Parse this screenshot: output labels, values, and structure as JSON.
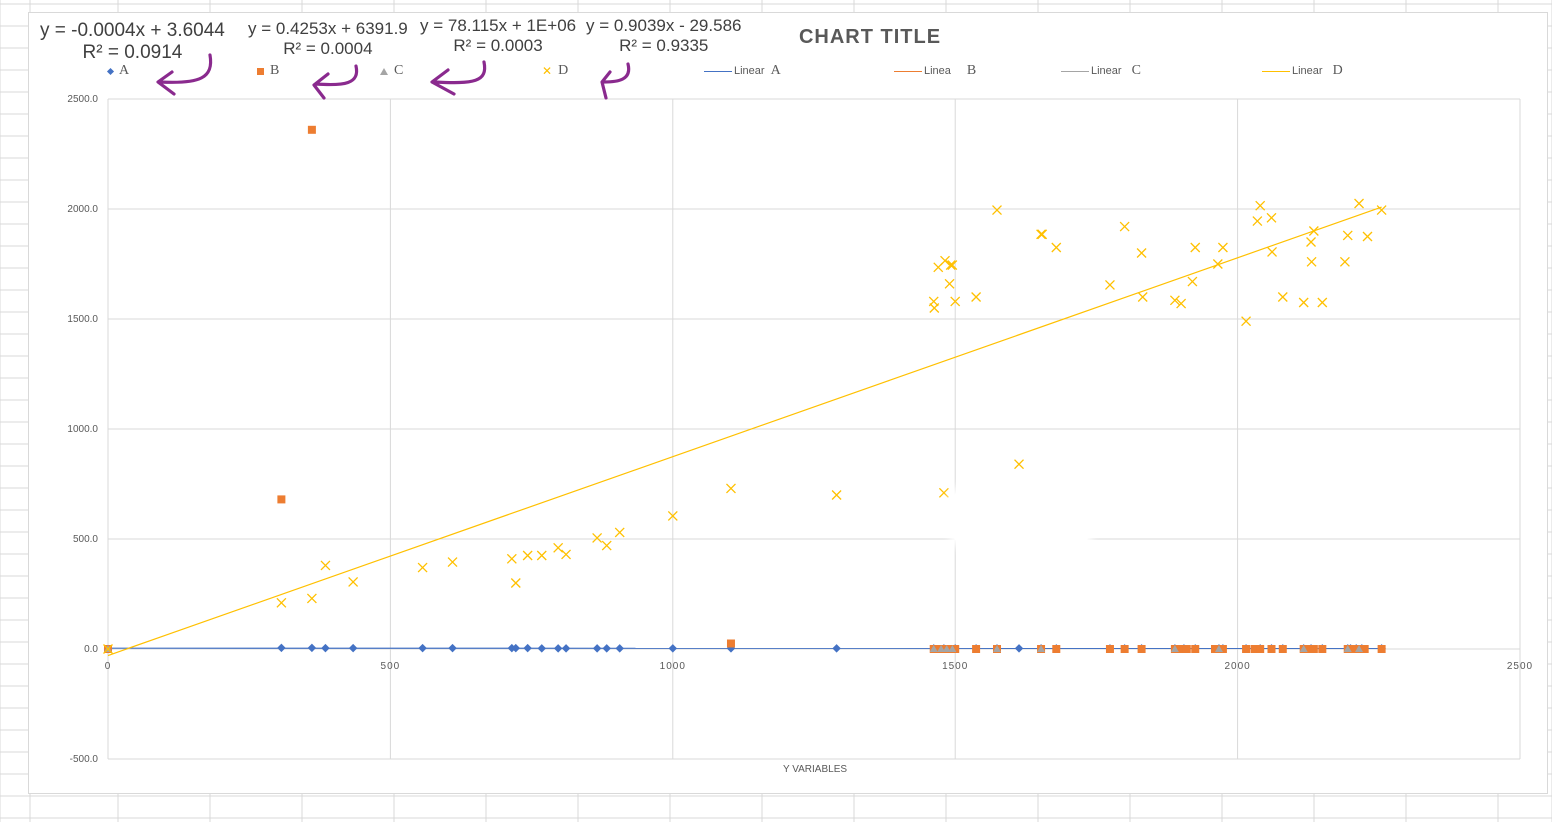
{
  "chart_data": {
    "type": "scatter",
    "title": "CHART TITLE",
    "xlabel": "Y VARIABLES",
    "ylabel": "",
    "xlim": [
      0,
      2500
    ],
    "ylim": [
      -500,
      2500
    ],
    "x_ticks": [
      "0",
      "500",
      "1000",
      "1500",
      "2000",
      "2500"
    ],
    "y_ticks": [
      "-500.0",
      "0.0",
      "500.0",
      "1000.0",
      "1500.0",
      "2000.0",
      "2500.0"
    ],
    "grid": true,
    "legend_position": "top",
    "legend": {
      "markers": [
        "A",
        "B",
        "C",
        "D"
      ],
      "lines": [
        {
          "prefix": "Linear",
          "label": "A"
        },
        {
          "prefix": "Linea",
          "label": "B"
        },
        {
          "prefix": "Linear",
          "label": "C"
        },
        {
          "prefix": "Linear",
          "label": "D"
        }
      ]
    },
    "trendline_equations": [
      {
        "equation": "y = -0.0004x + 3.6044",
        "r2": "R² = 0.0914"
      },
      {
        "equation": "y = 0.4253x + 6391.9",
        "r2": "R² = 0.0004"
      },
      {
        "equation": "y = 78.115x + 1E+06",
        "r2": "R² = 0.0003"
      },
      {
        "equation": "y = 0.9039x - 29.586",
        "r2": "R² = 0.9335"
      }
    ],
    "series": [
      {
        "name": "A",
        "marker": "diamond",
        "color": "#4472c4",
        "x": [
          0,
          307,
          361,
          385,
          434,
          557,
          610,
          715,
          722,
          743,
          768,
          797,
          811,
          866,
          883,
          906,
          1000,
          1103,
          1290,
          1462,
          1480,
          1500,
          1537,
          1574,
          1613,
          1652,
          1679,
          1774,
          1800,
          1830,
          1889,
          1905,
          1925,
          1967,
          1974,
          2015,
          2040,
          2060,
          2080,
          2117,
          2130,
          2150,
          2195,
          2200,
          2210,
          2220,
          2255
        ],
        "y": [
          0,
          5,
          5,
          4,
          4,
          4,
          4,
          4,
          4,
          4,
          3,
          3,
          3,
          3,
          3,
          3,
          3,
          3,
          3,
          3,
          3,
          3,
          3,
          3,
          3,
          3,
          3,
          3,
          3,
          3,
          3,
          3,
          3,
          3,
          3,
          3,
          3,
          3,
          3,
          3,
          3,
          3,
          3,
          3,
          3,
          3,
          3
        ],
        "trend": [
          [
            0,
            3.6044
          ],
          [
            2255,
            2.7
          ]
        ]
      },
      {
        "name": "B",
        "marker": "square",
        "color": "#ed7d31",
        "x": [
          0,
          307,
          361,
          1103,
          1462,
          1470,
          1480,
          1490,
          1500,
          1537,
          1574,
          1652,
          1679,
          1774,
          1800,
          1830,
          1889,
          1900,
          1910,
          1925,
          1960,
          1967,
          1974,
          2015,
          2030,
          2040,
          2060,
          2080,
          2117,
          2125,
          2135,
          2150,
          2195,
          2205,
          2215,
          2225,
          2255
        ],
        "y": [
          0,
          680,
          2360,
          25,
          0,
          0,
          0,
          0,
          0,
          0,
          0,
          0,
          0,
          0,
          0,
          0,
          0,
          0,
          0,
          0,
          0,
          0,
          0,
          0,
          0,
          0,
          0,
          0,
          0,
          0,
          0,
          0,
          0,
          0,
          0,
          0,
          0
        ]
      },
      {
        "name": "C",
        "marker": "triangle",
        "color": "#a5a5a5",
        "x": [
          0,
          1462,
          1475,
          1485,
          1495,
          1574,
          1652,
          1889,
          1967,
          2117,
          2195,
          2215
        ],
        "y": [
          0,
          0,
          0,
          0,
          0,
          0,
          0,
          0,
          0,
          0,
          0,
          0
        ]
      },
      {
        "name": "D",
        "marker": "x",
        "color": "#ffc000",
        "x": [
          0,
          307,
          361,
          385,
          434,
          557,
          610,
          715,
          722,
          743,
          768,
          797,
          811,
          866,
          883,
          906,
          1000,
          1103,
          1290,
          1462,
          1463,
          1470,
          1480,
          1482,
          1490,
          1492,
          1495,
          1500,
          1537,
          1574,
          1613,
          1652,
          1654,
          1679,
          1774,
          1800,
          1830,
          1832,
          1889,
          1900,
          1920,
          1925,
          1965,
          1974,
          2015,
          2035,
          2040,
          2060,
          2061,
          2080,
          2117,
          2130,
          2131,
          2135,
          2150,
          2190,
          2195,
          2215,
          2230,
          2255
        ],
        "y": [
          0,
          210,
          230,
          380,
          305,
          370,
          395,
          410,
          300,
          425,
          425,
          460,
          430,
          505,
          470,
          530,
          605,
          730,
          700,
          1580,
          1550,
          1735,
          710,
          1765,
          1660,
          1745,
          1745,
          1580,
          1600,
          1995,
          840,
          1885,
          1885,
          1825,
          1655,
          1920,
          1800,
          1600,
          1585,
          1570,
          1670,
          1825,
          1750,
          1825,
          1490,
          1945,
          2015,
          1960,
          1805,
          1600,
          1575,
          1850,
          1760,
          1900,
          1575,
          1760,
          1880,
          2025,
          1875,
          1995
        ],
        "trend": [
          [
            0,
            -29.586
          ],
          [
            2255,
            2008.7
          ]
        ]
      }
    ]
  },
  "colors": {
    "series_a": "#4472c4",
    "series_b": "#ed7d31",
    "series_c": "#a5a5a5",
    "series_d": "#ffc000",
    "annotation": "#8a2a8e",
    "gridline": "#d9d9d9"
  }
}
